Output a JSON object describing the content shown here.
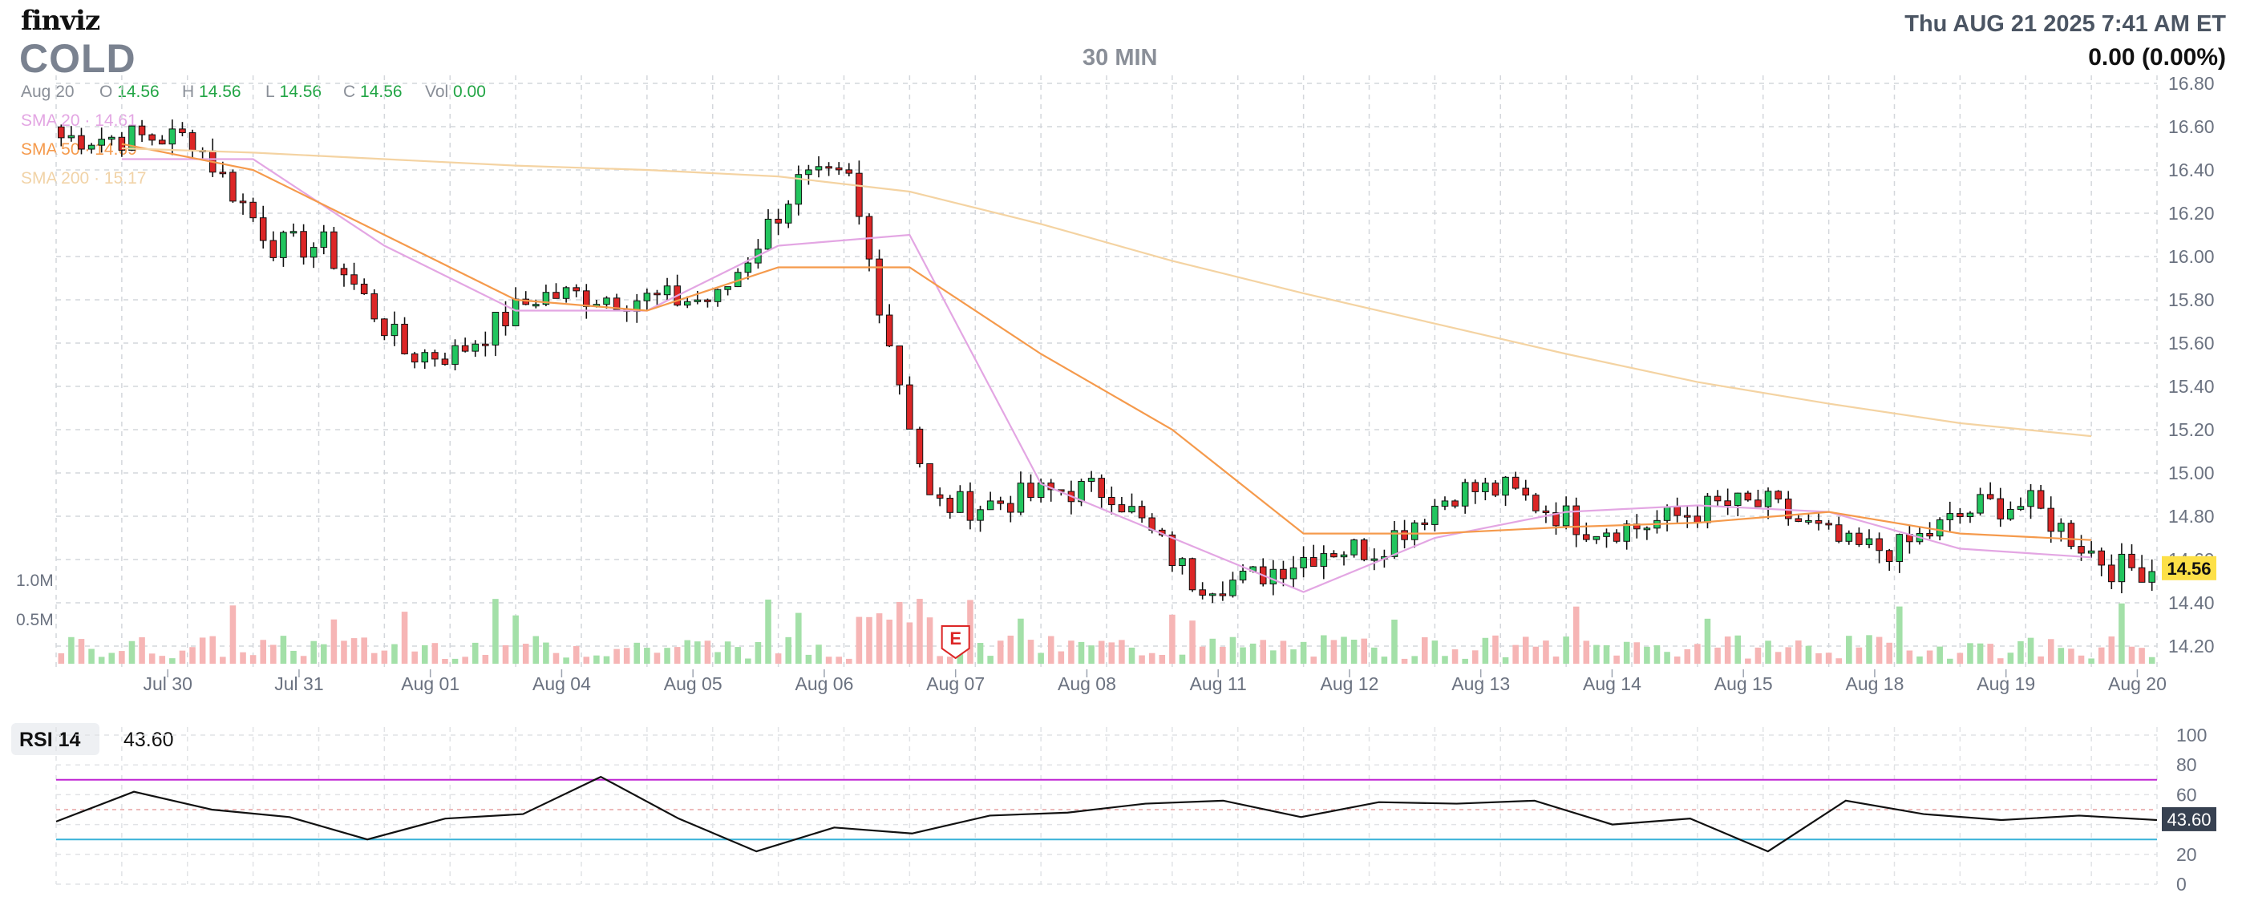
{
  "header": {
    "logo": "finviz",
    "ticker": "COLD",
    "timeframe": "30 MIN",
    "datetime": "Thu AUG 21 2025 7:41 AM ET",
    "change": "0.00 (0.00%)"
  },
  "ohlc": {
    "date": "Aug 20",
    "o_label": "O",
    "o": "14.56",
    "h_label": "H",
    "h": "14.56",
    "l_label": "L",
    "l": "14.56",
    "c_label": "C",
    "c": "14.56",
    "vol_label": "Vol",
    "vol": "0.00"
  },
  "sma": {
    "sma20_label": "SMA 20",
    "sma20_value": "14.61",
    "sma50_label": "SMA 50",
    "sma50_value": "14.69",
    "sma200_label": "SMA 200",
    "sma200_value": "15.17"
  },
  "colors": {
    "up": "#22c55e",
    "down": "#dc2626",
    "sma20": "#e3a6e3",
    "sma50": "#f59a4c",
    "sma200": "#f4d3a2",
    "vol_up": "#a3e0a8",
    "vol_down": "#f6b5b5",
    "rsi_over": "#c026d3",
    "rsi_under": "#38b2d8",
    "price_tag": "#fde047"
  },
  "chart_data": {
    "type": "candlestick",
    "symbol": "COLD",
    "interval": "30 MIN",
    "x_labels": [
      "Jul 30",
      "Jul 31",
      "Aug 01",
      "Aug 04",
      "Aug 05",
      "Aug 06",
      "Aug 07",
      "Aug 08",
      "Aug 11",
      "Aug 12",
      "Aug 13",
      "Aug 14",
      "Aug 15",
      "Aug 18",
      "Aug 19",
      "Aug 20"
    ],
    "y_ticks": [
      "16.80",
      "16.60",
      "16.40",
      "16.20",
      "16.00",
      "15.80",
      "15.60",
      "15.40",
      "15.20",
      "15.00",
      "14.80",
      "14.60",
      "14.40",
      "14.20"
    ],
    "ylim": [
      14.1,
      16.8
    ],
    "current_price": "14.56",
    "volume_ticks": [
      "1.0M",
      "0.5M"
    ],
    "earnings_marker": {
      "label": "E",
      "date": "Aug 07"
    },
    "price_path": [
      {
        "date": "Jul 30",
        "close": 16.55
      },
      {
        "date": "Jul 31",
        "close": 16.05
      },
      {
        "date": "Aug 01",
        "close": 15.55
      },
      {
        "date": "Aug 04",
        "close": 15.82
      },
      {
        "date": "Aug 05",
        "close": 15.8
      },
      {
        "date": "Aug 06",
        "close": 16.35
      },
      {
        "date": "Aug 07",
        "close": 14.85
      },
      {
        "date": "Aug 08",
        "close": 14.92
      },
      {
        "date": "Aug 11",
        "close": 14.5
      },
      {
        "date": "Aug 12",
        "close": 14.65
      },
      {
        "date": "Aug 13",
        "close": 14.92
      },
      {
        "date": "Aug 14",
        "close": 14.75
      },
      {
        "date": "Aug 15",
        "close": 14.85
      },
      {
        "date": "Aug 18",
        "close": 14.65
      },
      {
        "date": "Aug 19",
        "close": 14.85
      },
      {
        "date": "Aug 20",
        "close": 14.56
      }
    ],
    "sma_path": {
      "SMA 20": [
        16.45,
        16.45,
        16.05,
        15.75,
        15.75,
        16.05,
        16.1,
        14.95,
        14.7,
        14.45,
        14.7,
        14.82,
        14.85,
        14.82,
        14.65,
        14.61
      ],
      "SMA 50": [
        16.52,
        16.4,
        16.1,
        15.8,
        15.75,
        15.95,
        15.95,
        15.55,
        15.2,
        14.72,
        14.72,
        14.75,
        14.77,
        14.82,
        14.72,
        14.69
      ],
      "SMA 200": [
        16.5,
        16.48,
        16.45,
        16.42,
        16.4,
        16.37,
        16.3,
        16.15,
        15.98,
        15.83,
        15.69,
        15.55,
        15.42,
        15.32,
        15.23,
        15.17
      ]
    },
    "rsi": {
      "label": "RSI 14",
      "value": "43.60",
      "ticks": [
        "100",
        "80",
        "60",
        "40",
        "20",
        "0"
      ],
      "overbought": 70,
      "oversold": 30,
      "path": [
        42,
        62,
        50,
        45,
        30,
        44,
        47,
        72,
        44,
        22,
        38,
        34,
        46,
        48,
        54,
        56,
        45,
        55,
        54,
        56,
        40,
        44,
        22,
        56,
        47,
        43,
        46,
        43
      ]
    }
  }
}
